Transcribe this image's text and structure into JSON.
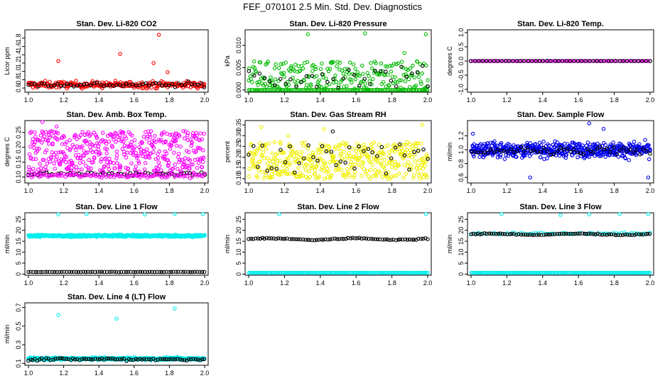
{
  "page": {
    "title": "FEF_070101  2.5 Min. Std. Dev. Diagnostics"
  },
  "chart_data": [
    {
      "id": "co2",
      "type": "scatter",
      "title": "Stan. Dev. Li-820 CO2",
      "xlabel": "",
      "ylabel": "Licor ppm",
      "xlim": [
        0.98,
        2.02
      ],
      "ylim": [
        0.5,
        2.0
      ],
      "xticks": [
        1.0,
        1.2,
        1.4,
        1.6,
        1.8,
        2.0
      ],
      "xtick_labels": [
        "1.0",
        "1.2",
        "1.4",
        "1.6",
        "1.8",
        "2.0"
      ],
      "yticks": [
        0.6,
        0.8,
        1.0,
        1.2,
        1.4,
        1.6,
        1.8
      ],
      "ytick_labels": [
        "0.6",
        "0.8",
        "1.0",
        "1.2",
        "1.4",
        "1.6",
        "1.8"
      ],
      "series": [
        {
          "color": "#ff0000",
          "pattern": "noise",
          "n": 240,
          "center": 0.68,
          "spread": 0.07,
          "outliers": [
            [
              1.17,
              1.25
            ],
            [
              1.52,
              1.42
            ],
            [
              1.71,
              1.2
            ],
            [
              1.74,
              1.88
            ],
            [
              1.79,
              0.98
            ]
          ]
        },
        {
          "color": "#000000",
          "pattern": "noise",
          "n": 55,
          "center": 0.68,
          "spread": 0.05,
          "outliers": []
        }
      ]
    },
    {
      "id": "pressure",
      "type": "scatter",
      "title": "Stan. Dev. Li-820 Pressure",
      "xlabel": "",
      "ylabel": "kPa",
      "xlim": [
        0.98,
        2.02
      ],
      "ylim": [
        -0.0005,
        0.0135
      ],
      "xticks": [
        1.0,
        1.2,
        1.4,
        1.6,
        1.8,
        2.0
      ],
      "xtick_labels": [
        "1.0",
        "1.2",
        "1.4",
        "1.6",
        "1.8",
        "2.0"
      ],
      "yticks": [
        0.0,
        0.005,
        0.01
      ],
      "ytick_labels": [
        "0.000",
        "0.005",
        "0.010"
      ],
      "series": [
        {
          "color": "#00bb00",
          "pattern": "random",
          "n": 230,
          "ymin": 0.0,
          "ymax": 0.0065,
          "outliers": [
            [
              1.33,
              0.0125
            ],
            [
              1.65,
              0.0127
            ],
            [
              1.87,
              0.0083
            ],
            [
              1.99,
              0.0125
            ]
          ]
        },
        {
          "color": "#00bb00",
          "pattern": "line",
          "n": 120,
          "y": 0.0,
          "outliers": []
        },
        {
          "color": "#000000",
          "pattern": "random",
          "n": 35,
          "ymin": 0.0005,
          "ymax": 0.0055,
          "outliers": []
        }
      ]
    },
    {
      "id": "temp",
      "type": "scatter",
      "title": "Stan. Dev. Li-820 Temp.",
      "xlabel": "",
      "ylabel": "degrees C",
      "xlim": [
        0.98,
        2.02
      ],
      "ylim": [
        -1.1,
        1.1
      ],
      "xticks": [
        1.0,
        1.2,
        1.4,
        1.6,
        1.8,
        2.0
      ],
      "xtick_labels": [
        "1.0",
        "1.2",
        "1.4",
        "1.6",
        "1.8",
        "2.0"
      ],
      "yticks": [
        -1.0,
        -0.5,
        0.0,
        0.5,
        1.0
      ],
      "ytick_labels": [
        "-1.0",
        "-0.5",
        "0.0",
        "0.5",
        "1.0"
      ],
      "series": [
        {
          "color": "#ff00ff",
          "pattern": "line",
          "n": 95,
          "y": 0.0,
          "outliers": []
        },
        {
          "color": "#000000",
          "pattern": "line",
          "n": 48,
          "y": 0.0,
          "outliers": []
        }
      ]
    },
    {
      "id": "ambbox",
      "type": "scatter",
      "title": "Stan. Dev. Amb. Box Temp.",
      "xlabel": "",
      "ylabel": "degrees C",
      "xlim": [
        0.98,
        2.02
      ],
      "ylim": [
        0.08,
        0.29
      ],
      "xticks": [
        1.0,
        1.2,
        1.4,
        1.6,
        1.8,
        2.0
      ],
      "xtick_labels": [
        "1.0",
        "1.2",
        "1.4",
        "1.6",
        "1.8",
        "2.0"
      ],
      "yticks": [
        0.1,
        0.15,
        0.2,
        0.25
      ],
      "ytick_labels": [
        "0.10",
        "0.15",
        "0.20",
        "0.25"
      ],
      "series": [
        {
          "color": "#ff00ff",
          "pattern": "random",
          "n": 460,
          "ymin": 0.11,
          "ymax": 0.255,
          "outliers": [
            [
              1.08,
              0.285
            ],
            [
              1.16,
              0.27
            ]
          ]
        },
        {
          "color": "#000000",
          "pattern": "noise",
          "n": 60,
          "center": 0.11,
          "spread": 0.005,
          "outliers": []
        },
        {
          "color": "#ff00ff",
          "pattern": "noise",
          "n": 100,
          "center": 0.105,
          "spread": 0.006,
          "outliers": []
        }
      ]
    },
    {
      "id": "rh",
      "type": "scatter",
      "title": "Stan. Dev. Gas Stream RH",
      "xlabel": "",
      "ylabel": "percent",
      "xlim": [
        0.98,
        2.02
      ],
      "ylim": [
        0.08,
        0.37
      ],
      "xticks": [
        1.0,
        1.2,
        1.4,
        1.6,
        1.8,
        2.0
      ],
      "xtick_labels": [
        "1.0",
        "1.2",
        "1.4",
        "1.6",
        "1.8",
        "2.0"
      ],
      "yticks": [
        0.1,
        0.15,
        0.2,
        0.25,
        0.3,
        0.35
      ],
      "ytick_labels": [
        "0.10",
        "0.15",
        "0.20",
        "0.25",
        "0.30",
        "0.35"
      ],
      "series": [
        {
          "color": "#f0f000",
          "pattern": "random",
          "n": 420,
          "ymin": 0.1,
          "ymax": 0.27,
          "outliers": [
            [
              1.07,
              0.34
            ],
            [
              1.42,
              0.33
            ],
            [
              1.97,
              0.35
            ],
            [
              1.22,
              0.3
            ]
          ]
        },
        {
          "color": "#000000",
          "pattern": "random",
          "n": 40,
          "ymin": 0.12,
          "ymax": 0.26,
          "outliers": [
            [
              1.47,
              0.32
            ]
          ]
        }
      ]
    },
    {
      "id": "sampleflow",
      "type": "scatter",
      "title": "Stan. Dev. Sample Flow",
      "xlabel": "",
      "ylabel": "ml/min",
      "xlim": [
        0.98,
        2.02
      ],
      "ylim": [
        0.52,
        1.42
      ],
      "xticks": [
        1.0,
        1.2,
        1.4,
        1.6,
        1.8,
        2.0
      ],
      "xtick_labels": [
        "1.0",
        "1.2",
        "1.4",
        "1.6",
        "1.8",
        "2.0"
      ],
      "yticks": [
        0.6,
        0.8,
        1.0,
        1.2
      ],
      "ytick_labels": [
        "0.6",
        "0.8",
        "1.0",
        "1.2"
      ],
      "series": [
        {
          "color": "#0000ee",
          "pattern": "noise",
          "n": 520,
          "center": 1.0,
          "spread": 0.09,
          "outliers": [
            [
              1.33,
              0.6
            ],
            [
              1.66,
              1.38
            ],
            [
              1.99,
              0.6
            ],
            [
              1.01,
              1.23
            ],
            [
              1.74,
              1.3
            ]
          ]
        },
        {
          "color": "#000000",
          "pattern": "noise",
          "n": 55,
          "center": 0.98,
          "spread": 0.05,
          "outliers": []
        }
      ]
    },
    {
      "id": "line1",
      "type": "scatter",
      "title": "Stan. Dev. Line 1 Flow",
      "xlabel": "",
      "ylabel": "ml/min",
      "xlim": [
        0.98,
        2.02
      ],
      "ylim": [
        -0.5,
        28
      ],
      "xticks": [
        1.0,
        1.2,
        1.4,
        1.6,
        1.8,
        2.0
      ],
      "xtick_labels": [
        "1.0",
        "1.2",
        "1.4",
        "1.6",
        "1.8",
        "2.0"
      ],
      "yticks": [
        0,
        5,
        10,
        15,
        20,
        25
      ],
      "ytick_labels": [
        "0",
        "5",
        "10",
        "15",
        "20",
        "25"
      ],
      "series": [
        {
          "color": "#00eeee",
          "pattern": "noise",
          "n": 520,
          "center": 17.5,
          "spread": 0.45,
          "outliers": [
            [
              1.17,
              27.3
            ],
            [
              1.33,
              27.4
            ],
            [
              1.66,
              27.3
            ],
            [
              1.83,
              27.5
            ],
            [
              1.99,
              27.4
            ]
          ]
        },
        {
          "color": "#000000",
          "pattern": "noise",
          "n": 75,
          "center": 1.0,
          "spread": 0.06,
          "outliers": []
        }
      ]
    },
    {
      "id": "line2",
      "type": "scatter",
      "title": "Stan. Dev. Line 2 Flow",
      "xlabel": "",
      "ylabel": "ml/min",
      "xlim": [
        0.98,
        2.02
      ],
      "ylim": [
        -0.5,
        28
      ],
      "xticks": [
        1.0,
        1.2,
        1.4,
        1.6,
        1.8,
        2.0
      ],
      "xtick_labels": [
        "1.0",
        "1.2",
        "1.4",
        "1.6",
        "1.8",
        "2.0"
      ],
      "yticks": [
        0,
        5,
        10,
        15,
        20,
        25
      ],
      "ytick_labels": [
        "0",
        "5",
        "10",
        "15",
        "20",
        "25"
      ],
      "series": [
        {
          "color": "#00eeee",
          "pattern": "line",
          "n": 150,
          "y": 0.6,
          "outliers": [
            [
              1.17,
              27.4
            ],
            [
              1.99,
              27.4
            ]
          ]
        },
        {
          "color": "#000000",
          "pattern": "wave",
          "n": 80,
          "center": 16.0,
          "amp": 0.9,
          "outliers": []
        }
      ]
    },
    {
      "id": "line3",
      "type": "scatter",
      "title": "Stan. Dev. Line 3 Flow",
      "xlabel": "",
      "ylabel": "ml/min",
      "xlim": [
        0.98,
        2.02
      ],
      "ylim": [
        -0.5,
        28
      ],
      "xticks": [
        1.0,
        1.2,
        1.4,
        1.6,
        1.8,
        2.0
      ],
      "xtick_labels": [
        "1.0",
        "1.2",
        "1.4",
        "1.6",
        "1.8",
        "2.0"
      ],
      "yticks": [
        0,
        5,
        10,
        15,
        20,
        25
      ],
      "ytick_labels": [
        "0",
        "5",
        "10",
        "15",
        "20",
        "25"
      ],
      "series": [
        {
          "color": "#00eeee",
          "pattern": "line",
          "n": 150,
          "y": 0.6,
          "outliers": [
            [
              1.17,
              27.4
            ],
            [
              1.5,
              27.0
            ],
            [
              1.66,
              27.3
            ],
            [
              1.83,
              27.4
            ],
            [
              1.99,
              27.4
            ]
          ]
        },
        {
          "color": "#00eeee",
          "pattern": "noise",
          "n": 70,
          "center": 18.5,
          "spread": 0.4,
          "outliers": []
        },
        {
          "color": "#000000",
          "pattern": "wave",
          "n": 80,
          "center": 18.2,
          "amp": 0.7,
          "outliers": []
        }
      ]
    },
    {
      "id": "line4",
      "type": "scatter",
      "title": "Stan. Dev. Line 4 (LT) Flow",
      "xlabel": "",
      "ylabel": "ml/min",
      "xlim": [
        0.98,
        2.02
      ],
      "ylim": [
        0.08,
        0.75
      ],
      "xticks": [
        1.0,
        1.2,
        1.4,
        1.6,
        1.8,
        2.0
      ],
      "xtick_labels": [
        "1.0",
        "1.2",
        "1.4",
        "1.6",
        "1.8",
        "2.0"
      ],
      "yticks": [
        0.1,
        0.3,
        0.5,
        0.7
      ],
      "ytick_labels": [
        "0.1",
        "0.3",
        "0.5",
        "0.7"
      ],
      "series": [
        {
          "color": "#00eeee",
          "pattern": "noise",
          "n": 420,
          "center": 0.15,
          "spread": 0.012,
          "outliers": [
            [
              1.17,
              0.62
            ],
            [
              1.5,
              0.58
            ],
            [
              1.83,
              0.69
            ]
          ]
        },
        {
          "color": "#000000",
          "pattern": "noise",
          "n": 80,
          "center": 0.145,
          "spread": 0.012,
          "outliers": []
        }
      ]
    }
  ]
}
